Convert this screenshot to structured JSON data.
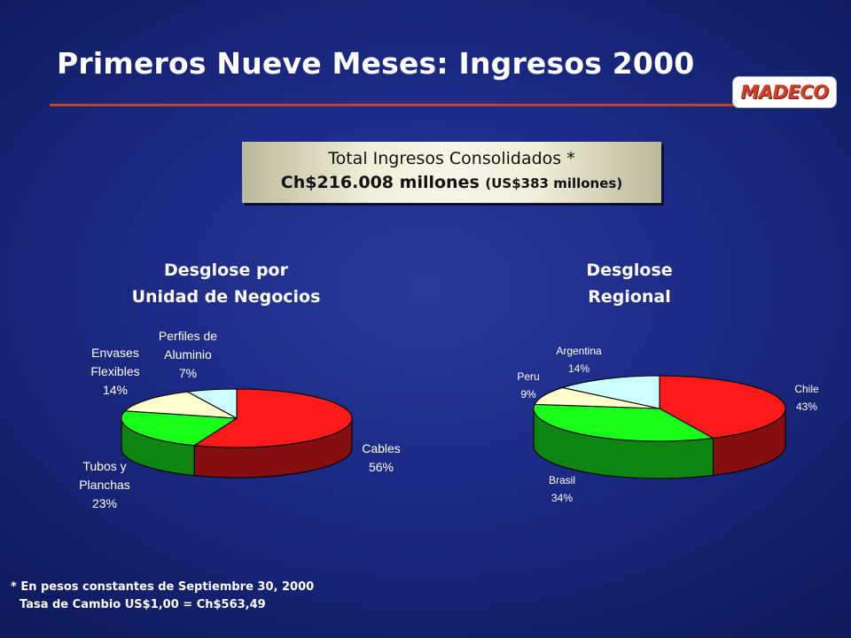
{
  "slide": {
    "title": "Primeros Nueve Meses: Ingresos 2000",
    "logo_text": "MADECO",
    "total_box": {
      "line1": "Total Ingresos Consolidados *",
      "line2_main": "Ch$216.008 millones",
      "line2_small": "(US$383 millones)"
    },
    "footnote_line1": "* En pesos constantes de Septiembre 30, 2000",
    "footnote_line2": "Tasa de Cambio US$1,00 = Ch$563,49"
  },
  "chart_data": [
    {
      "type": "pie",
      "title": "Desglose por Unidad de Negocios",
      "title_lines": [
        "Desglose por",
        "Unidad de Negocios"
      ],
      "slices": [
        {
          "label": "Cables",
          "label_lines": [
            "Cables"
          ],
          "value": 56,
          "pct": "56%",
          "color": "#ff1a1a"
        },
        {
          "label": "Tubos y Planchas",
          "label_lines": [
            "Tubos y",
            "Planchas"
          ],
          "value": 23,
          "pct": "23%",
          "color": "#1aff1a"
        },
        {
          "label": "Envases Flexibles",
          "label_lines": [
            "Envases",
            "Flexibles"
          ],
          "value": 14,
          "pct": "14%",
          "color": "#ffffcc"
        },
        {
          "label": "Perfiles de Aluminio",
          "label_lines": [
            "Perfiles de",
            "Aluminio"
          ],
          "value": 7,
          "pct": "7%",
          "color": "#ccffff"
        }
      ]
    },
    {
      "type": "pie",
      "title": "Desglose Regional",
      "title_lines": [
        "Desglose",
        "Regional"
      ],
      "slices": [
        {
          "label": "Chile",
          "label_lines": [
            "Chile"
          ],
          "value": 43,
          "pct": "43%",
          "color": "#ff1a1a"
        },
        {
          "label": "Brasil",
          "label_lines": [
            "Brasil"
          ],
          "value": 34,
          "pct": "34%",
          "color": "#1aff1a"
        },
        {
          "label": "Peru",
          "label_lines": [
            "Peru"
          ],
          "value": 9,
          "pct": "9%",
          "color": "#ffffcc"
        },
        {
          "label": "Argentina",
          "label_lines": [
            "Argentina"
          ],
          "value": 14,
          "pct": "14%",
          "color": "#ccffff"
        }
      ]
    }
  ]
}
